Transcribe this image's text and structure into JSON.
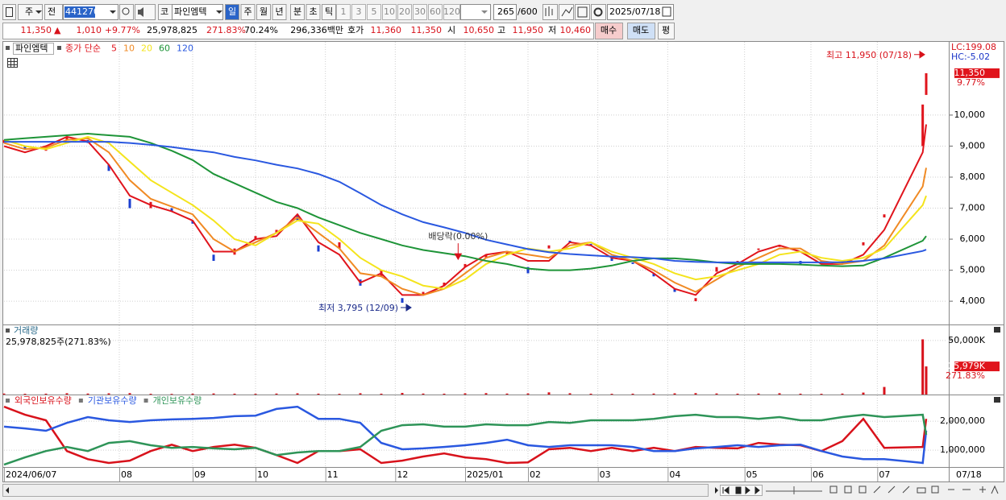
{
  "toolbar": {
    "period_unit": "주",
    "market_scope": "전",
    "code": "441270",
    "market": "코",
    "name": "파인엠텍",
    "periods": [
      "일",
      "주",
      "월",
      "년",
      "분",
      "초",
      "틱"
    ],
    "intervals": [
      "1",
      "3",
      "5",
      "10",
      "20",
      "30",
      "60",
      "120"
    ],
    "count": "265",
    "max_count": "/600",
    "date": "2025/07/18"
  },
  "info_bar": {
    "price": "11,350",
    "direction": "▲",
    "change": "1,010",
    "change_rate": "+9.77%",
    "volume": "25,978,825",
    "volume_rate": "271.83%",
    "turnover": "70.24%",
    "amount": "296,336백만",
    "quote_label": "호가",
    "ask": "11,360",
    "bid": "11,350",
    "open_label": "시",
    "open": "10,650",
    "high_label": "고",
    "high": "11,950",
    "low_label": "저",
    "low": "10,460",
    "buy": "매수",
    "sell": "매도",
    "avg": "평"
  },
  "chart_data": [
    {
      "type": "candlestick",
      "name": "파인엠텍",
      "ma_label": "종가 단순",
      "x": [
        0,
        6,
        12,
        18,
        24,
        30,
        36,
        42,
        48,
        54,
        60,
        66,
        72,
        78,
        84,
        90,
        96,
        102,
        108,
        114,
        120,
        126,
        132,
        138,
        144,
        150,
        156,
        162,
        168,
        174,
        180,
        186,
        192,
        198,
        204,
        210,
        216,
        222,
        228,
        234,
        240,
        246,
        252,
        263,
        264
      ],
      "xlim": [
        0,
        270
      ],
      "open": [
        9100,
        9000,
        8850,
        9200,
        9200,
        8400,
        7300,
        7000,
        7000,
        6600,
        5500,
        5500,
        6000,
        6200,
        6800,
        5800,
        5700,
        4700,
        4800,
        4100,
        4200,
        4500,
        5100,
        5400,
        5500,
        5100,
        5700,
        5950,
        5850,
        5400,
        5250,
        4900,
        4400,
        4000,
        4950,
        5250,
        5650,
        5750,
        5300,
        5250,
        5300,
        5800,
        6700,
        9000,
        10650
      ],
      "close": [
        9200,
        8900,
        9000,
        9300,
        9100,
        8200,
        7000,
        7200,
        6900,
        6500,
        5300,
        5700,
        6100,
        6300,
        6600,
        5600,
        5900,
        4500,
        5000,
        3950,
        4300,
        4600,
        5200,
        5500,
        5600,
        4900,
        5800,
        5900,
        5800,
        5300,
        5200,
        4800,
        4300,
        4100,
        5100,
        5300,
        5700,
        5800,
        5200,
        5300,
        5200,
        5900,
        6800,
        10340,
        11350
      ],
      "up_color": "#e0141c",
      "down_color": "#1b3fd0",
      "series": [
        {
          "name": "5",
          "color": "#e0141c",
          "values": [
            9000,
            8800,
            9000,
            9300,
            9150,
            8400,
            7400,
            7100,
            6900,
            6600,
            5600,
            5600,
            6000,
            6100,
            6800,
            5900,
            5500,
            4600,
            4900,
            4200,
            4200,
            4500,
            5100,
            5500,
            5600,
            5300,
            5300,
            5900,
            5800,
            5400,
            5300,
            4900,
            4400,
            4200,
            4900,
            5200,
            5600,
            5800,
            5600,
            5200,
            5200,
            5500,
            6300,
            8800,
            9700
          ]
        },
        {
          "name": "10",
          "color": "#f08a24",
          "values": [
            9100,
            8900,
            8950,
            9200,
            9250,
            8800,
            7900,
            7300,
            7050,
            6800,
            6000,
            5600,
            5900,
            6200,
            6700,
            6200,
            5700,
            4900,
            4800,
            4400,
            4200,
            4400,
            4900,
            5400,
            5600,
            5500,
            5400,
            5800,
            5900,
            5500,
            5300,
            5000,
            4600,
            4300,
            4700,
            5100,
            5400,
            5700,
            5700,
            5300,
            5200,
            5300,
            5800,
            7700,
            8300
          ]
        },
        {
          "name": "20",
          "color": "#f4e41c",
          "values": [
            9200,
            9000,
            8900,
            9100,
            9300,
            9100,
            8500,
            7900,
            7500,
            7100,
            6600,
            6000,
            5800,
            6200,
            6600,
            6500,
            6000,
            5400,
            5000,
            4800,
            4500,
            4400,
            4700,
            5200,
            5500,
            5700,
            5600,
            5700,
            5900,
            5600,
            5400,
            5200,
            4900,
            4700,
            4800,
            5000,
            5200,
            5500,
            5600,
            5400,
            5300,
            5400,
            5700,
            7100,
            7400
          ]
        },
        {
          "name": "60",
          "color": "#1e9438",
          "values": [
            9200,
            9250,
            9300,
            9350,
            9400,
            9350,
            9300,
            9100,
            8850,
            8550,
            8100,
            7800,
            7500,
            7200,
            7000,
            6700,
            6450,
            6200,
            6000,
            5800,
            5650,
            5550,
            5450,
            5300,
            5200,
            5050,
            5000,
            5000,
            5050,
            5150,
            5300,
            5380,
            5380,
            5330,
            5250,
            5200,
            5200,
            5200,
            5180,
            5150,
            5130,
            5150,
            5400,
            5950,
            6100
          ]
        },
        {
          "name": "120",
          "color": "#2a58e0",
          "values": [
            9140,
            9140,
            9140,
            9140,
            9140,
            9140,
            9100,
            9040,
            8970,
            8880,
            8800,
            8650,
            8540,
            8400,
            8280,
            8100,
            7850,
            7480,
            7100,
            6800,
            6550,
            6380,
            6200,
            5980,
            5830,
            5680,
            5580,
            5520,
            5480,
            5440,
            5420,
            5380,
            5300,
            5270,
            5250,
            5250,
            5250,
            5250,
            5250,
            5250,
            5260,
            5300,
            5380,
            5620,
            5660
          ]
        }
      ],
      "ylim": [
        3250,
        12360
      ],
      "yticks": [
        {
          "value": 4000,
          "label": "4,000"
        },
        {
          "value": 5000,
          "label": "5,000"
        },
        {
          "value": 6000,
          "label": "6,000"
        },
        {
          "value": 7000,
          "label": "7,000"
        },
        {
          "value": 8000,
          "label": "8,000"
        },
        {
          "value": 9000,
          "label": "9,000"
        },
        {
          "value": 10000,
          "label": "10,000"
        }
      ],
      "grid": true,
      "lc_label": "LC:199.08",
      "hc_label": "HC:-5.02",
      "last_value": {
        "value": 11350,
        "label": "11,350"
      },
      "last_change": "9.77%",
      "annotations": [
        {
          "text": "최고 11,950 (07/18)",
          "x": 264,
          "y": 11950,
          "color": "#d8121b",
          "arrow": "right"
        },
        {
          "text": "최저 3,795 (12/09)",
          "x": 117,
          "y": 3795,
          "color": "#1a2a8a",
          "arrow": "right"
        },
        {
          "text": "배당락(0.00%)",
          "x": 130,
          "y": 5350,
          "color": "#d8121b",
          "arrow": "down"
        }
      ]
    },
    {
      "type": "bar",
      "title": "거래량",
      "subtitle": "25,978,825주(271.83%)",
      "x": [
        0,
        6,
        12,
        18,
        24,
        30,
        36,
        42,
        48,
        54,
        60,
        66,
        72,
        78,
        84,
        90,
        96,
        102,
        108,
        114,
        120,
        126,
        132,
        138,
        144,
        150,
        156,
        162,
        168,
        174,
        180,
        186,
        192,
        198,
        204,
        210,
        216,
        222,
        228,
        234,
        240,
        246,
        252,
        263,
        264
      ],
      "xlim": [
        0,
        270
      ],
      "values": [
        900,
        700,
        800,
        1200,
        900,
        1100,
        1300,
        700,
        600,
        800,
        1000,
        800,
        700,
        900,
        1100,
        800,
        700,
        1200,
        800,
        1500,
        900,
        800,
        1100,
        1300,
        900,
        1000,
        2000,
        1200,
        800,
        700,
        800,
        900,
        1100,
        1300,
        1000,
        800,
        900,
        1200,
        800,
        700,
        900,
        1800,
        7000,
        51000,
        25979
      ],
      "color": "#d8121b",
      "ylim": [
        0,
        64000
      ],
      "yticks": [
        {
          "value": 50000,
          "label": "50,000K"
        }
      ],
      "last_value": {
        "value": 25979,
        "label": "25,979K"
      },
      "last_rate": "271.83%"
    },
    {
      "type": "line",
      "x": [
        0,
        6,
        12,
        18,
        24,
        30,
        36,
        42,
        48,
        54,
        60,
        66,
        72,
        78,
        84,
        90,
        96,
        102,
        108,
        114,
        120,
        126,
        132,
        138,
        144,
        150,
        156,
        162,
        168,
        174,
        180,
        186,
        192,
        198,
        204,
        210,
        216,
        222,
        228,
        234,
        240,
        246,
        252,
        263,
        264
      ],
      "xlim": [
        0,
        270
      ],
      "series": [
        {
          "name": "외국인보유수량",
          "color": "#d8121b",
          "values": [
            2500000,
            2220000,
            2030000,
            970000,
            690000,
            560000,
            640000,
            970000,
            1190000,
            970000,
            1110000,
            1190000,
            1080000,
            830000,
            560000,
            970000,
            970000,
            1030000,
            560000,
            640000,
            780000,
            890000,
            750000,
            690000,
            560000,
            580000,
            1030000,
            1080000,
            970000,
            1080000,
            970000,
            1080000,
            970000,
            1110000,
            1080000,
            1060000,
            1250000,
            1190000,
            1170000,
            970000,
            1310000,
            2080000,
            1080000,
            1110000,
            2080000
          ]
        },
        {
          "name": "기관보유수량",
          "color": "#2a58e0",
          "values": [
            1810000,
            1750000,
            1670000,
            1940000,
            2140000,
            2030000,
            1970000,
            2030000,
            2060000,
            2080000,
            2110000,
            2170000,
            2190000,
            2420000,
            2500000,
            2080000,
            2080000,
            1940000,
            1250000,
            1030000,
            1060000,
            1110000,
            1170000,
            1250000,
            1360000,
            1170000,
            1110000,
            1170000,
            1170000,
            1170000,
            1110000,
            970000,
            970000,
            1060000,
            1110000,
            1170000,
            1110000,
            1170000,
            1190000,
            970000,
            780000,
            690000,
            690000,
            560000,
            1670000
          ]
        },
        {
          "name": "개인보유수량",
          "color": "#2e9458",
          "values": [
            500000,
            750000,
            970000,
            1110000,
            970000,
            1250000,
            1310000,
            1170000,
            1080000,
            1110000,
            1060000,
            1030000,
            1080000,
            830000,
            920000,
            970000,
            970000,
            1110000,
            1670000,
            1860000,
            1890000,
            1810000,
            1810000,
            1890000,
            1860000,
            1860000,
            1970000,
            1940000,
            2030000,
            2030000,
            2030000,
            2080000,
            2170000,
            2220000,
            2140000,
            2140000,
            2080000,
            2140000,
            2030000,
            2030000,
            2140000,
            2220000,
            2140000,
            2220000,
            1530000
          ]
        }
      ],
      "ylim": [
        420000,
        2890000
      ],
      "yticks": [
        {
          "value": 1000000,
          "label": "1,000,000"
        },
        {
          "value": 2000000,
          "label": "2,000,000"
        }
      ],
      "xticks": [
        {
          "value": 0,
          "label": "2024/06/07"
        },
        {
          "value": 33,
          "label": "08"
        },
        {
          "value": 54,
          "label": "09"
        },
        {
          "value": 72,
          "label": "10"
        },
        {
          "value": 92,
          "label": "11"
        },
        {
          "value": 112,
          "label": "12"
        },
        {
          "value": 132,
          "label": "2025/01"
        },
        {
          "value": 150,
          "label": "02"
        },
        {
          "value": 170,
          "label": "03"
        },
        {
          "value": 190,
          "label": "04"
        },
        {
          "value": 212,
          "label": "05"
        },
        {
          "value": 231,
          "label": "06"
        },
        {
          "value": 250,
          "label": "07"
        }
      ],
      "last_x_label": "07/18"
    }
  ]
}
